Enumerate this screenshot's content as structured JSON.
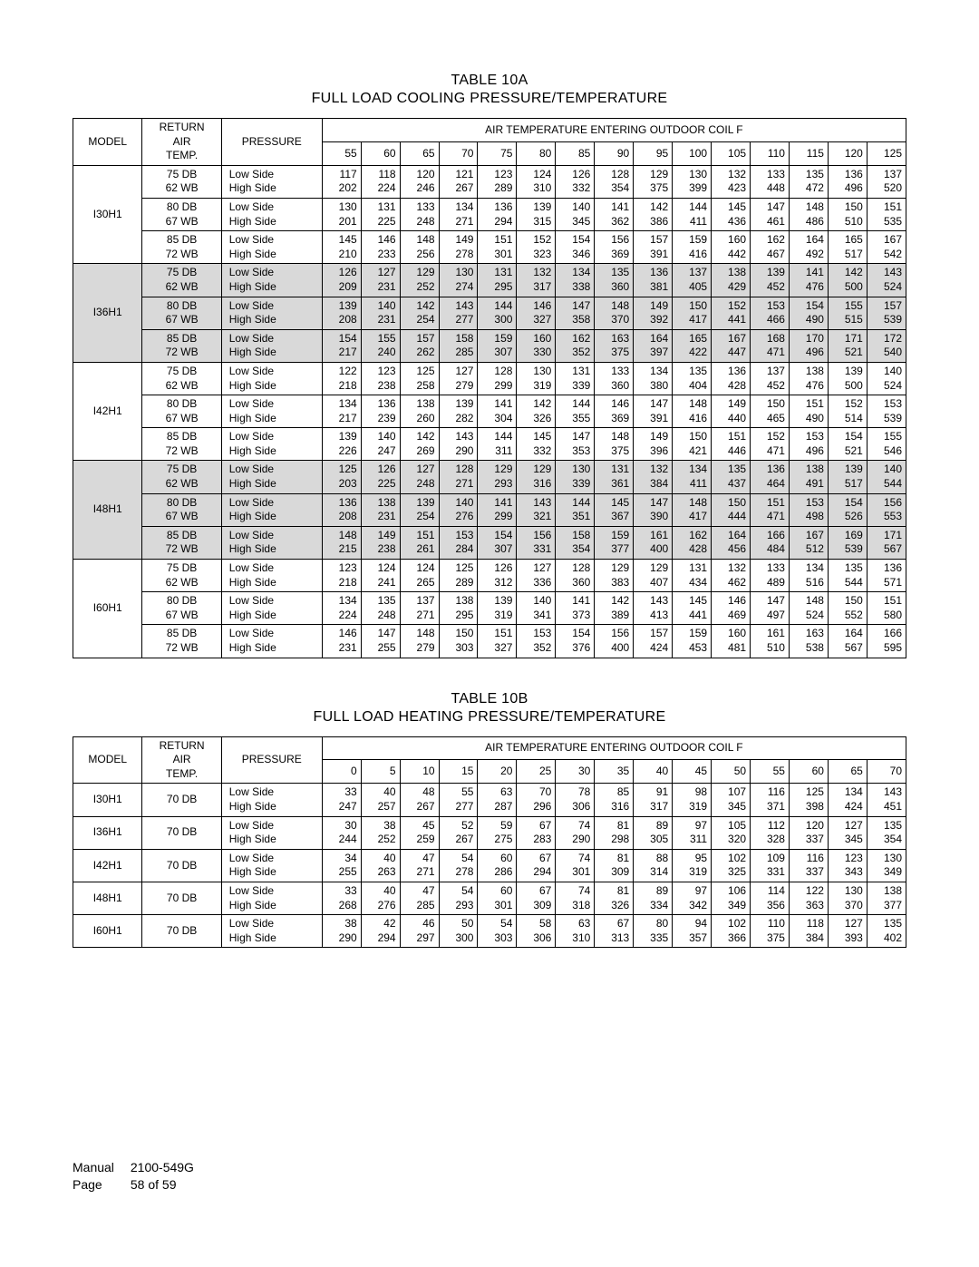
{
  "tableA": {
    "title": "TABLE  10A",
    "subtitle": "FULL LOAD COOLING PRESSURE/TEMPERATURE",
    "header_model": "MODEL",
    "header_return_l1": "RETURN",
    "header_return_l2": "AIR",
    "header_return_l3": "TEMP.",
    "header_pressure": "PRESSURE",
    "header_air_temp": "AIR TEMPERATURE ENTERING OUTDOOR COIL   F",
    "temps": [
      55,
      60,
      65,
      70,
      75,
      80,
      85,
      90,
      95,
      100,
      105,
      110,
      115,
      120,
      125
    ],
    "return_air_labels": {
      "r1": "75 DB",
      "r1b": "62 WB",
      "r2": "80 DB",
      "r2b": "67 WB",
      "r3": "85 DB",
      "r3b": "72 WB"
    },
    "pressure_labels": {
      "low": "Low Side",
      "high": "High Side"
    },
    "models": [
      {
        "name": "I30H1",
        "shade": false,
        "rows": [
          {
            "low": [
              117,
              118,
              120,
              121,
              123,
              124,
              126,
              128,
              129,
              130,
              132,
              133,
              135,
              136,
              137
            ],
            "high": [
              202,
              224,
              246,
              267,
              289,
              310,
              332,
              354,
              375,
              399,
              423,
              448,
              472,
              496,
              520
            ]
          },
          {
            "low": [
              130,
              131,
              133,
              134,
              136,
              139,
              140,
              141,
              142,
              144,
              145,
              147,
              148,
              150,
              151
            ],
            "high": [
              201,
              225,
              248,
              271,
              294,
              315,
              345,
              362,
              386,
              411,
              436,
              461,
              486,
              510,
              535
            ]
          },
          {
            "low": [
              145,
              146,
              148,
              149,
              151,
              152,
              154,
              156,
              157,
              159,
              160,
              162,
              164,
              165,
              167
            ],
            "high": [
              210,
              233,
              256,
              278,
              301,
              323,
              346,
              369,
              391,
              416,
              442,
              467,
              492,
              517,
              542
            ]
          }
        ]
      },
      {
        "name": "I36H1",
        "shade": true,
        "rows": [
          {
            "low": [
              126,
              127,
              129,
              130,
              131,
              132,
              134,
              135,
              136,
              137,
              138,
              139,
              141,
              142,
              143
            ],
            "high": [
              209,
              231,
              252,
              274,
              295,
              317,
              338,
              360,
              381,
              405,
              429,
              452,
              476,
              500,
              524
            ]
          },
          {
            "low": [
              139,
              140,
              142,
              143,
              144,
              146,
              147,
              148,
              149,
              150,
              152,
              153,
              154,
              155,
              157
            ],
            "high": [
              208,
              231,
              254,
              277,
              300,
              327,
              358,
              370,
              392,
              417,
              441,
              466,
              490,
              515,
              539
            ]
          },
          {
            "low": [
              154,
              155,
              157,
              158,
              159,
              160,
              162,
              163,
              164,
              165,
              167,
              168,
              170,
              171,
              172
            ],
            "high": [
              217,
              240,
              262,
              285,
              307,
              330,
              352,
              375,
              397,
              422,
              447,
              471,
              496,
              521,
              540
            ]
          }
        ]
      },
      {
        "name": "I42H1",
        "shade": false,
        "rows": [
          {
            "low": [
              122,
              123,
              125,
              127,
              128,
              130,
              131,
              133,
              134,
              135,
              136,
              137,
              138,
              139,
              140
            ],
            "high": [
              218,
              238,
              258,
              279,
              299,
              319,
              339,
              360,
              380,
              404,
              428,
              452,
              476,
              500,
              524
            ]
          },
          {
            "low": [
              134,
              136,
              138,
              139,
              141,
              142,
              144,
              146,
              147,
              148,
              149,
              150,
              151,
              152,
              153
            ],
            "high": [
              217,
              239,
              260,
              282,
              304,
              326,
              355,
              369,
              391,
              416,
              440,
              465,
              490,
              514,
              539
            ]
          },
          {
            "low": [
              139,
              140,
              142,
              143,
              144,
              145,
              147,
              148,
              149,
              150,
              151,
              152,
              153,
              154,
              155
            ],
            "high": [
              226,
              247,
              269,
              290,
              311,
              332,
              353,
              375,
              396,
              421,
              446,
              471,
              496,
              521,
              546
            ]
          }
        ]
      },
      {
        "name": "I48H1",
        "shade": true,
        "rows": [
          {
            "low": [
              125,
              126,
              127,
              128,
              129,
              129,
              130,
              131,
              132,
              134,
              135,
              136,
              138,
              139,
              140
            ],
            "high": [
              203,
              225,
              248,
              271,
              293,
              316,
              339,
              361,
              384,
              411,
              437,
              464,
              491,
              517,
              544
            ]
          },
          {
            "low": [
              136,
              138,
              139,
              140,
              141,
              143,
              144,
              145,
              147,
              148,
              150,
              151,
              153,
              154,
              156
            ],
            "high": [
              208,
              231,
              254,
              276,
              299,
              321,
              351,
              367,
              390,
              417,
              444,
              471,
              498,
              526,
              553
            ]
          },
          {
            "low": [
              148,
              149,
              151,
              153,
              154,
              156,
              158,
              159,
              161,
              162,
              164,
              166,
              167,
              169,
              171
            ],
            "high": [
              215,
              238,
              261,
              284,
              307,
              331,
              354,
              377,
              400,
              428,
              456,
              484,
              512,
              539,
              567
            ]
          }
        ]
      },
      {
        "name": "I60H1",
        "shade": false,
        "rows": [
          {
            "low": [
              123,
              124,
              124,
              125,
              126,
              127,
              128,
              129,
              129,
              131,
              132,
              133,
              134,
              135,
              136
            ],
            "high": [
              218,
              241,
              265,
              289,
              312,
              336,
              360,
              383,
              407,
              434,
              462,
              489,
              516,
              544,
              571
            ]
          },
          {
            "low": [
              134,
              135,
              137,
              138,
              139,
              140,
              141,
              142,
              143,
              145,
              146,
              147,
              148,
              150,
              151
            ],
            "high": [
              224,
              248,
              271,
              295,
              319,
              341,
              373,
              389,
              413,
              441,
              469,
              497,
              524,
              552,
              580
            ]
          },
          {
            "low": [
              146,
              147,
              148,
              150,
              151,
              153,
              154,
              156,
              157,
              159,
              160,
              161,
              163,
              164,
              166
            ],
            "high": [
              231,
              255,
              279,
              303,
              327,
              352,
              376,
              400,
              424,
              453,
              481,
              510,
              538,
              567,
              595
            ]
          }
        ]
      }
    ]
  },
  "tableB": {
    "title": "TABLE  10B",
    "subtitle": "FULL LOAD HEATING PRESSURE/TEMPERATURE",
    "header_model": "MODEL",
    "header_return_l1": "RETURN",
    "header_return_l2": "AIR",
    "header_return_l3": "TEMP.",
    "header_pressure": "PRESSURE",
    "header_air_temp": "AIR TEMPERATURE ENTERING OUTDOOR COIL   F",
    "temps": [
      0,
      5,
      10,
      15,
      20,
      25,
      30,
      35,
      40,
      45,
      50,
      55,
      60,
      65,
      70
    ],
    "return_air": "70   DB",
    "pressure_labels": {
      "low": "Low Side",
      "high": "High Side"
    },
    "models": [
      {
        "name": "I30H1",
        "low": [
          33,
          40,
          48,
          55,
          63,
          70,
          78,
          85,
          91,
          98,
          107,
          116,
          125,
          134,
          143
        ],
        "high": [
          247,
          257,
          267,
          277,
          287,
          296,
          306,
          316,
          317,
          319,
          345,
          371,
          398,
          424,
          451
        ]
      },
      {
        "name": "I36H1",
        "low": [
          30,
          38,
          45,
          52,
          59,
          67,
          74,
          81,
          89,
          97,
          105,
          112,
          120,
          127,
          135
        ],
        "high": [
          244,
          252,
          259,
          267,
          275,
          283,
          290,
          298,
          305,
          311,
          320,
          328,
          337,
          345,
          354
        ]
      },
      {
        "name": "I42H1",
        "low": [
          34,
          40,
          47,
          54,
          60,
          67,
          74,
          81,
          88,
          95,
          102,
          109,
          116,
          123,
          130
        ],
        "high": [
          255,
          263,
          271,
          278,
          286,
          294,
          301,
          309,
          314,
          319,
          325,
          331,
          337,
          343,
          349
        ]
      },
      {
        "name": "I48H1",
        "low": [
          33,
          40,
          47,
          54,
          60,
          67,
          74,
          81,
          89,
          97,
          106,
          114,
          122,
          130,
          138
        ],
        "high": [
          268,
          276,
          285,
          293,
          301,
          309,
          318,
          326,
          334,
          342,
          349,
          356,
          363,
          370,
          377
        ]
      },
      {
        "name": "I60H1",
        "low": [
          38,
          42,
          46,
          50,
          54,
          58,
          63,
          67,
          80,
          94,
          102,
          110,
          118,
          127,
          135
        ],
        "high": [
          290,
          294,
          297,
          300,
          303,
          306,
          310,
          313,
          335,
          357,
          366,
          375,
          384,
          393,
          402
        ]
      }
    ]
  },
  "footer": {
    "manual_label": "Manual",
    "manual_value": "2100-549G",
    "page_label": "Page",
    "page_value": "58 of 59"
  }
}
